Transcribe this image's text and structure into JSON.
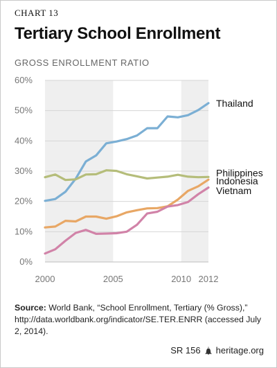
{
  "header": {
    "chart_label": "CHART 13",
    "title": "Tertiary School Enrollment",
    "subtitle": "GROSS ENROLLMENT RATIO"
  },
  "source": {
    "label": "Source:",
    "text": "World Bank, “School Enrollment, Tertiary (% Gross),” http://data.worldbank.org/indicator/SE.TER.ENRR (accessed July 2, 2014)."
  },
  "footer": {
    "report_id": "SR 156",
    "site": "heritage.org"
  },
  "chart_data": {
    "type": "line",
    "title": "Tertiary School Enrollment",
    "subtitle": "GROSS ENROLLMENT RATIO",
    "xlabel": "",
    "ylabel": "",
    "xlim": [
      2000,
      2012
    ],
    "ylim": [
      0,
      60
    ],
    "x_ticks": [
      2000,
      2005,
      2010,
      2012
    ],
    "y_ticks": [
      "0%",
      "10%",
      "20%",
      "30%",
      "40%",
      "50%",
      "60%"
    ],
    "y_tick_values": [
      0,
      10,
      20,
      30,
      40,
      50,
      60
    ],
    "shaded_ranges": [
      [
        2000,
        2005
      ],
      [
        2010,
        2012
      ]
    ],
    "grid": true,
    "x": [
      2000,
      2000.75,
      2001.5,
      2002.25,
      2003,
      2003.75,
      2004.5,
      2005.25,
      2006,
      2006.75,
      2007.5,
      2008.25,
      2009,
      2009.75,
      2010.5,
      2011.25,
      2012
    ],
    "series": [
      {
        "name": "Thailand",
        "color": "#7bafd4",
        "values": [
          20.2,
          20.8,
          23.2,
          27.5,
          33.2,
          35.2,
          39.2,
          39.8,
          40.6,
          41.8,
          44.2,
          44.2,
          48.1,
          47.8,
          48.5,
          50.2,
          52.5
        ]
      },
      {
        "name": "Philippines",
        "color": "#b5bd7a",
        "values": [
          28.0,
          28.9,
          27.1,
          27.3,
          28.9,
          29.0,
          30.3,
          30.1,
          29.0,
          28.3,
          27.6,
          27.9,
          28.2,
          28.8,
          28.2,
          28.0,
          28.1
        ]
      },
      {
        "name": "Indonesia",
        "color": "#e8a765",
        "values": [
          11.4,
          11.7,
          13.6,
          13.4,
          15.0,
          15.0,
          14.3,
          15.1,
          16.4,
          17.1,
          17.7,
          17.8,
          18.4,
          20.6,
          23.5,
          25.0,
          27.2
        ]
      },
      {
        "name": "Vietnam",
        "color": "#d183a8",
        "values": [
          2.8,
          4.2,
          7.0,
          9.6,
          10.6,
          9.3,
          9.4,
          9.5,
          10.0,
          12.3,
          16.0,
          16.6,
          18.3,
          18.8,
          19.8,
          22.4,
          24.6
        ]
      }
    ]
  }
}
